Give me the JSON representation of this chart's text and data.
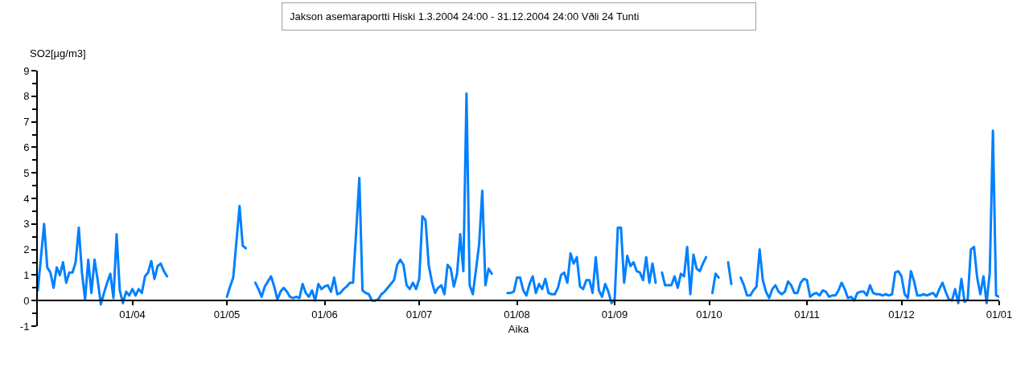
{
  "chart_data": {
    "type": "line",
    "title": "Jakson asemaraportti Hiski 1.3.2004 24:00 - 31.12.2004 24:00 Vðli 24 Tunti",
    "xlabel": "Aika",
    "ylabel": "SO2[µg/m3]",
    "color": "#0080ff",
    "grid": false,
    "xlim": [
      "2004-03-02",
      "2005-01-01"
    ],
    "ylim": [
      -1,
      9
    ],
    "xticks": [
      {
        "value": "2004-04-01",
        "label": "01/04"
      },
      {
        "value": "2004-05-01",
        "label": "01/05"
      },
      {
        "value": "2004-06-01",
        "label": "01/06"
      },
      {
        "value": "2004-07-01",
        "label": "01/07"
      },
      {
        "value": "2004-08-01",
        "label": "01/08"
      },
      {
        "value": "2004-09-01",
        "label": "01/09"
      },
      {
        "value": "2004-10-01",
        "label": "01/10"
      },
      {
        "value": "2004-11-01",
        "label": "01/11"
      },
      {
        "value": "2004-12-01",
        "label": "01/12"
      },
      {
        "value": "2005-01-01",
        "label": "01/01"
      }
    ],
    "yticks": [
      -1,
      0,
      1,
      2,
      3,
      4,
      5,
      6,
      7,
      8,
      9,
      {
        "value": -0.5,
        "label": null
      },
      {
        "value": 0.5,
        "label": null
      },
      {
        "value": 1.5,
        "label": null
      },
      {
        "value": 2.5,
        "label": null
      },
      {
        "value": 3.5,
        "label": null
      },
      {
        "value": 4.5,
        "label": null
      },
      {
        "value": 5.5,
        "label": null
      },
      {
        "value": 6.5,
        "label": null
      },
      {
        "value": 7.5,
        "label": null
      },
      {
        "value": 8.5,
        "label": null
      }
    ],
    "x": [
      "2004-03-02",
      "2004-03-03",
      "2004-03-04",
      "2004-03-05",
      "2004-03-06",
      "2004-03-07",
      "2004-03-08",
      "2004-03-09",
      "2004-03-10",
      "2004-03-11",
      "2004-03-12",
      "2004-03-13",
      "2004-03-14",
      "2004-03-15",
      "2004-03-16",
      "2004-03-17",
      "2004-03-18",
      "2004-03-19",
      "2004-03-20",
      "2004-03-21",
      "2004-03-22",
      "2004-03-23",
      "2004-03-24",
      "2004-03-25",
      "2004-03-26",
      "2004-03-27",
      "2004-03-28",
      "2004-03-29",
      "2004-03-30",
      "2004-03-31",
      "2004-04-01",
      "2004-04-02",
      "2004-04-03",
      "2004-04-04",
      "2004-04-05",
      "2004-04-06",
      "2004-04-07",
      "2004-04-08",
      "2004-04-09",
      "2004-04-10",
      "2004-04-11",
      "2004-04-12",
      "2004-04-13",
      "2004-05-01",
      "2004-05-02",
      "2004-05-03",
      "2004-05-04",
      "2004-05-05",
      "2004-05-06",
      "2004-05-07",
      "2004-05-08",
      "2004-05-10",
      "2004-05-11",
      "2004-05-12",
      "2004-05-13",
      "2004-05-14",
      "2004-05-15",
      "2004-05-16",
      "2004-05-17",
      "2004-05-18",
      "2004-05-19",
      "2004-05-20",
      "2004-05-21",
      "2004-05-22",
      "2004-05-23",
      "2004-05-24",
      "2004-05-25",
      "2004-05-26",
      "2004-05-27",
      "2004-05-28",
      "2004-05-29",
      "2004-05-30",
      "2004-05-31",
      "2004-06-01",
      "2004-06-02",
      "2004-06-03",
      "2004-06-04",
      "2004-06-05",
      "2004-06-06",
      "2004-06-07",
      "2004-06-08",
      "2004-06-09",
      "2004-06-10",
      "2004-06-11",
      "2004-06-12",
      "2004-06-13",
      "2004-06-14",
      "2004-06-15",
      "2004-06-16",
      "2004-06-17",
      "2004-06-18",
      "2004-06-19",
      "2004-06-20",
      "2004-06-21",
      "2004-06-22",
      "2004-06-23",
      "2004-06-24",
      "2004-06-25",
      "2004-06-26",
      "2004-06-27",
      "2004-06-28",
      "2004-06-29",
      "2004-06-30",
      "2004-07-01",
      "2004-07-02",
      "2004-07-03",
      "2004-07-04",
      "2004-07-05",
      "2004-07-06",
      "2004-07-07",
      "2004-07-08",
      "2004-07-09",
      "2004-07-10",
      "2004-07-11",
      "2004-07-12",
      "2004-07-13",
      "2004-07-14",
      "2004-07-15",
      "2004-07-16",
      "2004-07-17",
      "2004-07-18",
      "2004-07-19",
      "2004-07-20",
      "2004-07-21",
      "2004-07-22",
      "2004-07-23",
      "2004-07-24",
      "2004-07-25",
      "2004-07-29",
      "2004-07-30",
      "2004-07-31",
      "2004-08-01",
      "2004-08-02",
      "2004-08-03",
      "2004-08-04",
      "2004-08-05",
      "2004-08-06",
      "2004-08-07",
      "2004-08-08",
      "2004-08-09",
      "2004-08-10",
      "2004-08-11",
      "2004-08-12",
      "2004-08-13",
      "2004-08-14",
      "2004-08-15",
      "2004-08-16",
      "2004-08-17",
      "2004-08-18",
      "2004-08-19",
      "2004-08-20",
      "2004-08-21",
      "2004-08-22",
      "2004-08-23",
      "2004-08-24",
      "2004-08-25",
      "2004-08-26",
      "2004-08-27",
      "2004-08-28",
      "2004-08-29",
      "2004-08-30",
      "2004-08-31",
      "2004-09-01",
      "2004-09-02",
      "2004-09-03",
      "2004-09-04",
      "2004-09-05",
      "2004-09-06",
      "2004-09-07",
      "2004-09-08",
      "2004-09-09",
      "2004-09-10",
      "2004-09-11",
      "2004-09-12",
      "2004-09-13",
      "2004-09-14",
      "2004-09-15",
      "2004-09-16",
      "2004-09-17",
      "2004-09-18",
      "2004-09-19",
      "2004-09-20",
      "2004-09-21",
      "2004-09-22",
      "2004-09-23",
      "2004-09-24",
      "2004-09-25",
      "2004-09-26",
      "2004-09-27",
      "2004-09-28",
      "2004-09-29",
      "2004-09-30",
      "2004-10-01",
      "2004-10-02",
      "2004-10-03",
      "2004-10-04",
      "2004-10-05",
      "2004-10-07",
      "2004-10-08",
      "2004-10-09",
      "2004-10-11",
      "2004-10-12",
      "2004-10-13",
      "2004-10-14",
      "2004-10-15",
      "2004-10-16",
      "2004-10-17",
      "2004-10-18",
      "2004-10-19",
      "2004-10-20",
      "2004-10-21",
      "2004-10-22",
      "2004-10-23",
      "2004-10-24",
      "2004-10-25",
      "2004-10-26",
      "2004-10-27",
      "2004-10-28",
      "2004-10-29",
      "2004-10-30",
      "2004-10-31",
      "2004-11-01",
      "2004-11-02",
      "2004-11-03",
      "2004-11-04",
      "2004-11-05",
      "2004-11-06",
      "2004-11-07",
      "2004-11-08",
      "2004-11-09",
      "2004-11-10",
      "2004-11-11",
      "2004-11-12",
      "2004-11-13",
      "2004-11-14",
      "2004-11-15",
      "2004-11-16",
      "2004-11-17",
      "2004-11-18",
      "2004-11-19",
      "2004-11-20",
      "2004-11-21",
      "2004-11-22",
      "2004-11-23",
      "2004-11-24",
      "2004-11-25",
      "2004-11-26",
      "2004-11-27",
      "2004-11-28",
      "2004-11-29",
      "2004-11-30",
      "2004-12-01",
      "2004-12-02",
      "2004-12-03",
      "2004-12-04",
      "2004-12-05",
      "2004-12-06",
      "2004-12-07",
      "2004-12-08",
      "2004-12-09",
      "2004-12-10",
      "2004-12-11",
      "2004-12-12",
      "2004-12-13",
      "2004-12-14",
      "2004-12-15",
      "2004-12-16",
      "2004-12-17",
      "2004-12-18",
      "2004-12-19",
      "2004-12-20",
      "2004-12-21",
      "2004-12-22",
      "2004-12-23",
      "2004-12-24",
      "2004-12-25",
      "2004-12-26",
      "2004-12-27",
      "2004-12-28",
      "2004-12-29",
      "2004-12-30",
      "2004-12-31",
      "2005-01-01"
    ],
    "values": [
      0.4,
      1.7,
      3.0,
      1.3,
      1.1,
      0.5,
      1.3,
      1.0,
      1.5,
      0.7,
      1.1,
      1.1,
      1.5,
      2.85,
      1.1,
      0.05,
      1.6,
      0.3,
      1.6,
      0.8,
      -0.15,
      0.3,
      0.7,
      1.05,
      0.1,
      2.6,
      0.4,
      -0.1,
      0.35,
      0.2,
      0.45,
      0.2,
      0.45,
      0.3,
      0.95,
      1.1,
      1.55,
      0.85,
      1.35,
      1.45,
      1.15,
      0.95,
      null,
      0.15,
      0.55,
      0.9,
      2.3,
      3.7,
      2.15,
      2.05,
      null,
      0.7,
      0.45,
      0.15,
      0.55,
      0.75,
      0.95,
      0.55,
      0.05,
      0.35,
      0.5,
      0.35,
      0.15,
      0.1,
      0.15,
      0.1,
      0.65,
      0.3,
      0.15,
      0.4,
      0.0,
      0.65,
      0.45,
      0.55,
      0.6,
      0.35,
      0.9,
      0.25,
      0.3,
      0.45,
      0.55,
      0.7,
      0.7,
      2.7,
      4.8,
      0.4,
      0.3,
      0.25,
      0.0,
      0.0,
      0.05,
      0.25,
      0.35,
      0.5,
      0.65,
      0.8,
      1.4,
      1.6,
      1.4,
      0.6,
      0.45,
      0.7,
      0.45,
      0.85,
      3.3,
      3.15,
      1.4,
      0.75,
      0.3,
      0.5,
      0.6,
      0.25,
      1.4,
      1.25,
      0.55,
      1.05,
      2.6,
      1.15,
      8.1,
      0.6,
      0.25,
      1.2,
      2.2,
      4.3,
      0.6,
      1.25,
      1.05,
      null,
      0.3,
      0.3,
      0.35,
      0.9,
      0.9,
      0.4,
      0.2,
      0.65,
      0.95,
      0.3,
      0.65,
      0.45,
      0.85,
      0.3,
      0.25,
      0.25,
      0.5,
      1.0,
      1.1,
      0.7,
      1.85,
      1.45,
      1.7,
      0.55,
      0.45,
      0.8,
      0.8,
      0.3,
      1.7,
      0.4,
      0.15,
      0.65,
      0.35,
      -0.1,
      0.05,
      2.85,
      2.85,
      0.7,
      1.75,
      1.35,
      1.5,
      1.15,
      1.1,
      0.8,
      1.7,
      0.7,
      1.45,
      0.7,
      null,
      1.1,
      0.6,
      0.6,
      0.6,
      0.95,
      0.5,
      1.05,
      0.95,
      2.1,
      0.25,
      1.8,
      1.25,
      1.15,
      1.45,
      1.7,
      null,
      0.3,
      1.05,
      0.9,
      null,
      1.5,
      0.65,
      null,
      0.9,
      0.6,
      0.2,
      0.2,
      0.4,
      0.55,
      2.0,
      0.8,
      0.35,
      0.1,
      0.45,
      0.6,
      0.35,
      0.25,
      0.35,
      0.75,
      0.6,
      0.3,
      0.3,
      0.7,
      0.85,
      0.8,
      0.15,
      0.25,
      0.3,
      0.2,
      0.4,
      0.35,
      0.15,
      0.2,
      0.2,
      0.4,
      0.7,
      0.45,
      0.1,
      0.15,
      0.0,
      0.3,
      0.35,
      0.35,
      0.2,
      0.6,
      0.3,
      0.25,
      0.25,
      0.2,
      0.25,
      0.2,
      0.25,
      1.1,
      1.15,
      0.95,
      0.25,
      0.1,
      1.15,
      0.75,
      0.2,
      0.2,
      0.25,
      0.2,
      0.25,
      0.3,
      0.15,
      0.45,
      0.7,
      0.35,
      0.05,
      0.0,
      0.45,
      -0.1,
      0.85,
      -0.05,
      0.05,
      2.0,
      2.1,
      0.9,
      0.25,
      0.95,
      -0.1,
      1.1,
      6.65,
      0.2,
      0.15
    ]
  }
}
